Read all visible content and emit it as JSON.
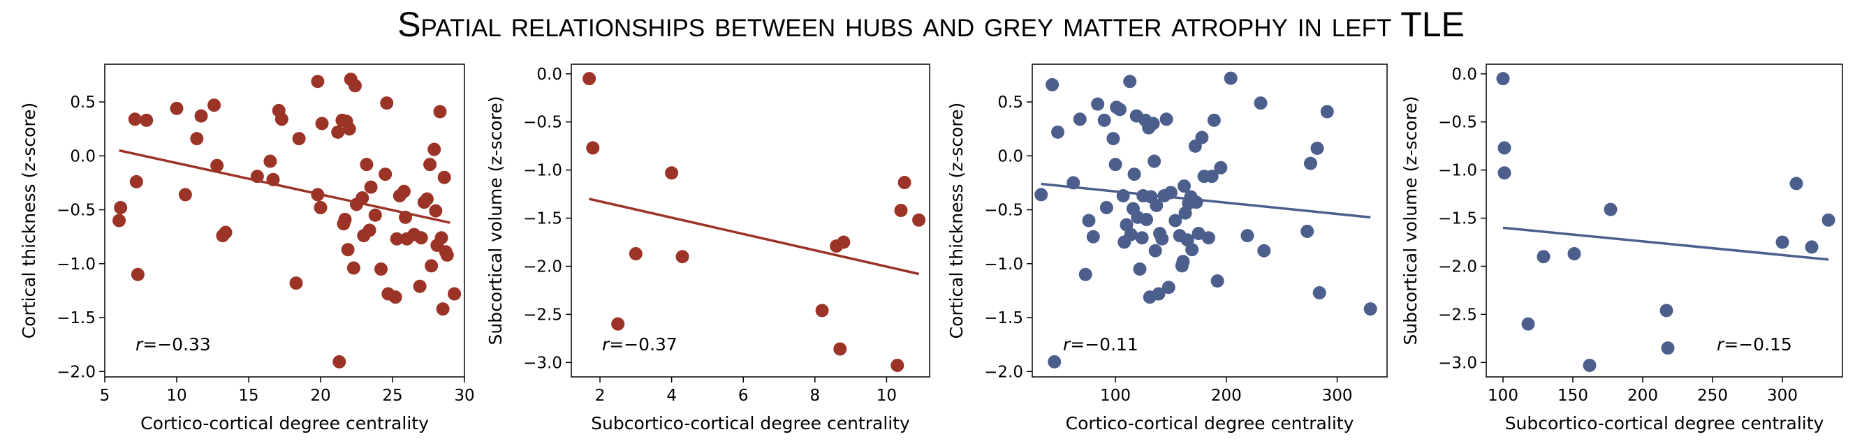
{
  "figure": {
    "title": "Spatial relationships between hubs and grey matter atrophy in left TLE"
  },
  "chart_data": [
    {
      "type": "scatter",
      "xlabel": "Cortico-cortical degree centrality",
      "ylabel": "Cortical thickness (z-score)",
      "xlim": [
        5,
        30
      ],
      "ylim": [
        -2.05,
        0.85
      ],
      "xticks": [
        5,
        10,
        15,
        20,
        25,
        30
      ],
      "yticks": [
        -2.0,
        -1.5,
        -1.0,
        -0.5,
        0.0,
        0.5
      ],
      "color": "#9b3327",
      "annotation_label": "r=-0.33",
      "fit": {
        "x": [
          6,
          29
        ],
        "y": [
          0.05,
          -0.62
        ]
      },
      "points": [
        [
          6.0,
          -0.6
        ],
        [
          6.1,
          -0.48
        ],
        [
          7.1,
          0.34
        ],
        [
          7.2,
          -0.24
        ],
        [
          7.3,
          -1.1
        ],
        [
          7.9,
          0.33
        ],
        [
          10.0,
          0.44
        ],
        [
          10.6,
          -0.36
        ],
        [
          11.4,
          0.16
        ],
        [
          11.7,
          0.37
        ],
        [
          12.6,
          0.47
        ],
        [
          12.8,
          -0.09
        ],
        [
          13.2,
          -0.74
        ],
        [
          13.4,
          -0.71
        ],
        [
          15.6,
          -0.19
        ],
        [
          16.5,
          -0.05
        ],
        [
          16.7,
          -0.22
        ],
        [
          17.1,
          0.42
        ],
        [
          17.3,
          0.34
        ],
        [
          18.3,
          -1.18
        ],
        [
          18.5,
          0.16
        ],
        [
          19.8,
          0.69
        ],
        [
          19.8,
          -0.36
        ],
        [
          20.0,
          -0.48
        ],
        [
          20.1,
          0.3
        ],
        [
          21.2,
          0.22
        ],
        [
          21.3,
          -1.91
        ],
        [
          21.5,
          0.33
        ],
        [
          21.6,
          -0.63
        ],
        [
          21.7,
          -0.59
        ],
        [
          21.8,
          0.32
        ],
        [
          21.9,
          -0.87
        ],
        [
          22.0,
          0.25
        ],
        [
          22.1,
          0.71
        ],
        [
          22.3,
          -1.04
        ],
        [
          22.4,
          0.65
        ],
        [
          22.5,
          -0.45
        ],
        [
          22.9,
          -0.39
        ],
        [
          23.0,
          -0.74
        ],
        [
          23.2,
          -0.08
        ],
        [
          23.4,
          -0.69
        ],
        [
          23.5,
          -0.29
        ],
        [
          23.8,
          -0.55
        ],
        [
          24.2,
          -1.05
        ],
        [
          24.5,
          -0.17
        ],
        [
          24.6,
          0.49
        ],
        [
          24.7,
          -1.28
        ],
        [
          25.2,
          -1.31
        ],
        [
          25.3,
          -0.77
        ],
        [
          25.5,
          -0.37
        ],
        [
          25.8,
          -0.33
        ],
        [
          25.9,
          -0.57
        ],
        [
          26.0,
          -0.77
        ],
        [
          26.5,
          -0.73
        ],
        [
          26.9,
          -1.21
        ],
        [
          27.0,
          -0.76
        ],
        [
          27.2,
          -0.43
        ],
        [
          27.4,
          -0.4
        ],
        [
          27.6,
          -0.08
        ],
        [
          27.7,
          -1.02
        ],
        [
          27.9,
          0.06
        ],
        [
          28.0,
          -0.51
        ],
        [
          28.1,
          -0.83
        ],
        [
          28.3,
          0.41
        ],
        [
          28.4,
          -0.76
        ],
        [
          28.5,
          -1.42
        ],
        [
          28.6,
          -0.2
        ],
        [
          28.7,
          -0.89
        ],
        [
          28.8,
          -0.92
        ],
        [
          29.3,
          -1.28
        ]
      ]
    },
    {
      "type": "scatter",
      "xlabel": "Subcortico-cortical degree centrality",
      "ylabel": "Subcortical volume (z-score)",
      "xlim": [
        1.2,
        11.2
      ],
      "ylim": [
        -3.15,
        0.1
      ],
      "xticks": [
        2,
        4,
        6,
        8,
        10
      ],
      "yticks": [
        -3.0,
        -2.5,
        -2.0,
        -1.5,
        -1.0,
        -0.5,
        0.0
      ],
      "color": "#9b3327",
      "annotation_label": "r=-0.37",
      "fit": {
        "x": [
          1.7,
          10.9
        ],
        "y": [
          -1.3,
          -2.08
        ]
      },
      "points": [
        [
          1.7,
          -0.05
        ],
        [
          1.8,
          -0.77
        ],
        [
          2.5,
          -2.6
        ],
        [
          3.0,
          -1.87
        ],
        [
          4.0,
          -1.03
        ],
        [
          4.3,
          -1.9
        ],
        [
          8.2,
          -2.46
        ],
        [
          8.6,
          -1.79
        ],
        [
          8.7,
          -2.86
        ],
        [
          8.8,
          -1.75
        ],
        [
          10.3,
          -3.03
        ],
        [
          10.4,
          -1.42
        ],
        [
          10.5,
          -1.13
        ],
        [
          10.9,
          -1.52
        ]
      ]
    },
    {
      "type": "scatter",
      "xlabel": "Cortico-cortical degree centrality",
      "ylabel": "Cortical thickness (z-score)",
      "xlim": [
        25,
        345
      ],
      "ylim": [
        -2.05,
        0.85
      ],
      "xticks": [
        100,
        200,
        300
      ],
      "yticks": [
        -2.0,
        -1.5,
        -1.0,
        -0.5,
        0.0,
        0.5
      ],
      "color": "#4b5e8c",
      "annotation_label": "r=-0.11",
      "fit": {
        "x": [
          33,
          330
        ],
        "y": [
          -0.26,
          -0.57
        ]
      },
      "points": [
        [
          33,
          -0.36
        ],
        [
          43,
          0.66
        ],
        [
          45,
          -1.91
        ],
        [
          48,
          0.22
        ],
        [
          62,
          -0.25
        ],
        [
          68,
          0.34
        ],
        [
          73,
          -1.1
        ],
        [
          76,
          -0.6
        ],
        [
          80,
          -0.75
        ],
        [
          84,
          0.48
        ],
        [
          90,
          0.33
        ],
        [
          92,
          -0.48
        ],
        [
          98,
          0.16
        ],
        [
          100,
          -0.08
        ],
        [
          101,
          0.45
        ],
        [
          104,
          0.43
        ],
        [
          107,
          -0.37
        ],
        [
          108,
          -0.8
        ],
        [
          110,
          -0.64
        ],
        [
          113,
          0.69
        ],
        [
          114,
          -0.73
        ],
        [
          116,
          -0.49
        ],
        [
          117,
          -0.17
        ],
        [
          119,
          0.37
        ],
        [
          120,
          -0.57
        ],
        [
          122,
          -1.05
        ],
        [
          124,
          -0.76
        ],
        [
          125,
          -0.37
        ],
        [
          127,
          0.33
        ],
        [
          128,
          -0.59
        ],
        [
          130,
          0.26
        ],
        [
          131,
          -1.31
        ],
        [
          132,
          -0.38
        ],
        [
          134,
          0.3
        ],
        [
          135,
          -0.05
        ],
        [
          136,
          -0.88
        ],
        [
          137,
          -0.46
        ],
        [
          139,
          -1.28
        ],
        [
          140,
          -0.72
        ],
        [
          142,
          -0.77
        ],
        [
          144,
          -0.37
        ],
        [
          146,
          0.34
        ],
        [
          148,
          -1.22
        ],
        [
          150,
          -0.34
        ],
        [
          154,
          -0.6
        ],
        [
          158,
          -0.74
        ],
        [
          160,
          -1.02
        ],
        [
          161,
          -0.98
        ],
        [
          162,
          -0.28
        ],
        [
          163,
          -0.53
        ],
        [
          165,
          -0.78
        ],
        [
          166,
          -0.44
        ],
        [
          168,
          -0.38
        ],
        [
          169,
          -0.87
        ],
        [
          172,
          0.09
        ],
        [
          173,
          -0.43
        ],
        [
          175,
          -0.72
        ],
        [
          178,
          0.17
        ],
        [
          180,
          -0.19
        ],
        [
          184,
          -0.76
        ],
        [
          187,
          -0.19
        ],
        [
          189,
          0.33
        ],
        [
          192,
          -1.16
        ],
        [
          195,
          -0.11
        ],
        [
          204,
          0.72
        ],
        [
          219,
          -0.74
        ],
        [
          231,
          0.49
        ],
        [
          234,
          -0.88
        ],
        [
          273,
          -0.7
        ],
        [
          276,
          -0.07
        ],
        [
          282,
          0.07
        ],
        [
          284,
          -1.27
        ],
        [
          291,
          0.41
        ],
        [
          330,
          -1.42
        ]
      ]
    },
    {
      "type": "scatter",
      "xlabel": "Subcortico-cortical degree centrality",
      "ylabel": "Subcortical volume (z-score)",
      "xlim": [
        88,
        343
      ],
      "ylim": [
        -3.15,
        0.1
      ],
      "xticks": [
        100,
        150,
        200,
        250,
        300
      ],
      "yticks": [
        -3.0,
        -2.5,
        -2.0,
        -1.5,
        -1.0,
        -0.5,
        0.0
      ],
      "color": "#4b5e8c",
      "annotation_label": "r=-0.15",
      "fit": {
        "x": [
          100,
          333
        ],
        "y": [
          -1.6,
          -1.93
        ]
      },
      "points": [
        [
          100,
          -0.05
        ],
        [
          101,
          -0.77
        ],
        [
          101,
          -1.03
        ],
        [
          118,
          -2.6
        ],
        [
          129,
          -1.9
        ],
        [
          151,
          -1.87
        ],
        [
          162,
          -3.03
        ],
        [
          177,
          -1.41
        ],
        [
          217,
          -2.46
        ],
        [
          218,
          -2.85
        ],
        [
          300,
          -1.75
        ],
        [
          310,
          -1.14
        ],
        [
          321,
          -1.8
        ],
        [
          333,
          -1.52
        ]
      ]
    }
  ]
}
